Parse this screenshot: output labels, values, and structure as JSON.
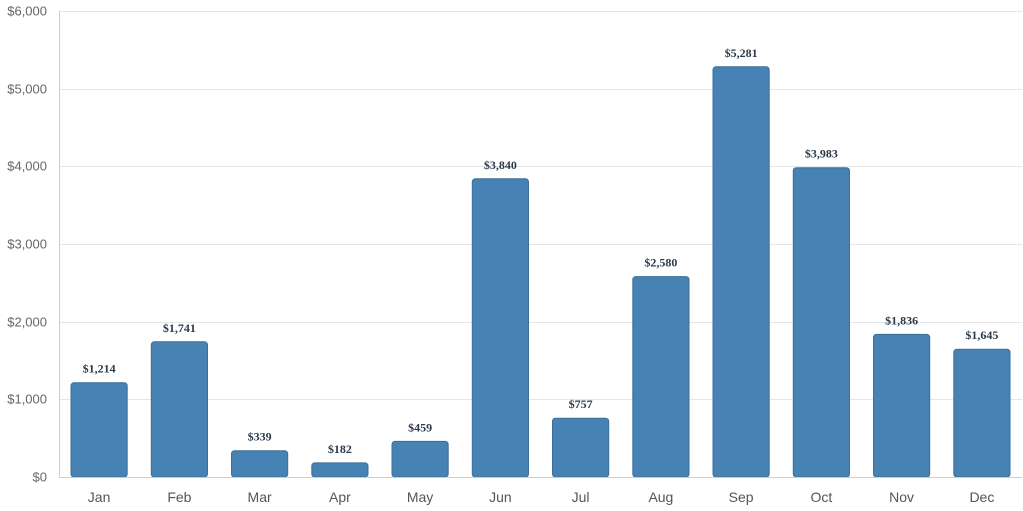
{
  "chart_data": {
    "type": "bar",
    "title": "",
    "xlabel": "",
    "ylabel": "",
    "categories": [
      "Jan",
      "Feb",
      "Mar",
      "Apr",
      "May",
      "Jun",
      "Jul",
      "Aug",
      "Sep",
      "Oct",
      "Nov",
      "Dec"
    ],
    "values": [
      1214,
      1741,
      339,
      182,
      459,
      3840,
      757,
      2580,
      5281,
      3983,
      1836,
      1645
    ],
    "data_labels": [
      "$1,214",
      "$1,741",
      "$339",
      "$182",
      "$459",
      "$3,840",
      "$757",
      "$2,580",
      "$5,281",
      "$3,983",
      "$1,836",
      "$1,645"
    ],
    "ylim": [
      0,
      6000
    ],
    "y_ticks": [
      0,
      1000,
      2000,
      3000,
      4000,
      5000,
      6000
    ],
    "y_tick_labels": [
      "$0",
      "$1,000",
      "$2,000",
      "$3,000",
      "$4,000",
      "$5,000",
      "$6,000"
    ],
    "grid": true,
    "legend": "none",
    "colors": {
      "bar": "#4682b4",
      "bar_border": "#3b6f99",
      "grid": "#e6e6e6",
      "label": "#2a3b4c"
    }
  }
}
